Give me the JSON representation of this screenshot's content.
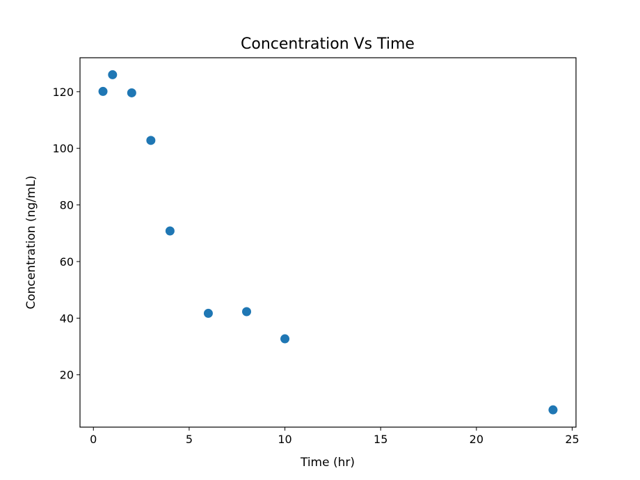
{
  "chart_data": {
    "type": "scatter",
    "title": "Concentration Vs Time",
    "xlabel": "Time (hr)",
    "ylabel": "Concentration (ng/mL)",
    "xlim": [
      -0.7,
      25.2
    ],
    "ylim": [
      1.5,
      132
    ],
    "xticks": [
      0,
      5,
      10,
      15,
      20,
      25
    ],
    "yticks": [
      20,
      40,
      60,
      80,
      100,
      120
    ],
    "grid": false,
    "legend": "none",
    "series": [
      {
        "name": "Concentration",
        "color": "#1f77b4",
        "x": [
          0.5,
          1,
          2,
          3,
          4,
          6,
          8,
          10,
          24
        ],
        "y": [
          120.1,
          126.0,
          119.6,
          102.8,
          70.8,
          41.7,
          42.3,
          32.7,
          7.6
        ]
      }
    ]
  }
}
